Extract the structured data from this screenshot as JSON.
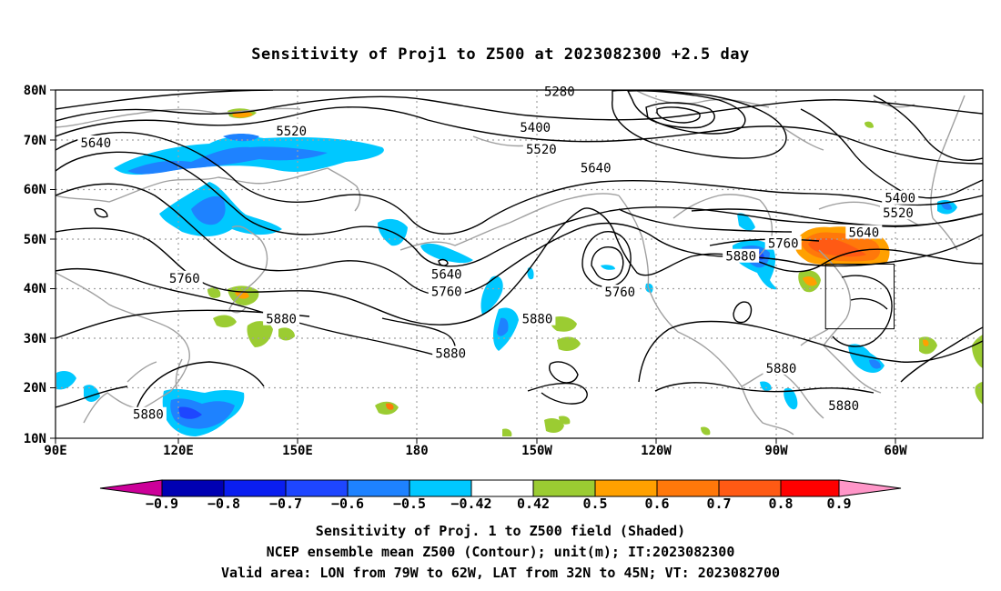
{
  "title": "Sensitivity of Proj1 to Z500 at 2023082300 +2.5 day",
  "map": {
    "lat_ticks": [
      "80N",
      "70N",
      "60N",
      "50N",
      "40N",
      "30N",
      "20N",
      "10N"
    ],
    "lon_ticks": [
      "90E",
      "120E",
      "150E",
      "180",
      "150W",
      "120W",
      "90W",
      "60W"
    ],
    "contour_labels": [
      {
        "text": "5280",
        "lon": -145,
        "lat": 79.7
      },
      {
        "text": "5400",
        "lon": -151,
        "lat": 72.5
      },
      {
        "text": "5520",
        "lon": 148.5,
        "lat": 71.8
      },
      {
        "text": "5640",
        "lon": 100,
        "lat": 69.4
      },
      {
        "text": "5520",
        "lon": -149.5,
        "lat": 68.1
      },
      {
        "text": "5640",
        "lon": -136,
        "lat": 64.4
      },
      {
        "text": "5400",
        "lon": -60.5,
        "lat": 58.3
      },
      {
        "text": "5520",
        "lon": -61,
        "lat": 55.3
      },
      {
        "text": "5640",
        "lon": -69.5,
        "lat": 51.4
      },
      {
        "text": "5760",
        "lon": -89.5,
        "lat": 49.2
      },
      {
        "text": "5880",
        "lon": -100,
        "lat": 46.6
      },
      {
        "text": "5640",
        "lon": -173,
        "lat": 43
      },
      {
        "text": "5760",
        "lon": -173,
        "lat": 39.5
      },
      {
        "text": "5760",
        "lon": 122,
        "lat": 42.2
      },
      {
        "text": "5760",
        "lon": -130,
        "lat": 39.4
      },
      {
        "text": "5880",
        "lon": 146,
        "lat": 34
      },
      {
        "text": "5880",
        "lon": -150.5,
        "lat": 34
      },
      {
        "text": "5880",
        "lon": -172,
        "lat": 27.1
      },
      {
        "text": "5880",
        "lon": -90,
        "lat": 24.1
      },
      {
        "text": "5880",
        "lon": -74.5,
        "lat": 16.6
      },
      {
        "text": "5880",
        "lon": 113,
        "lat": 14.8
      }
    ],
    "valid_box": {
      "lon_min": -79,
      "lon_max": -62,
      "lat_min": 32,
      "lat_max": 45
    },
    "colors": {
      "neg_09": "#cc0099",
      "neg_08": "#0000b3",
      "neg_07": "#0a1ef0",
      "neg_06": "#1e46ff",
      "neg_05": "#1e82ff",
      "neg_042": "#00c8ff",
      "neutral": "#ffffff",
      "pos_042": "#9bcc32",
      "pos_05": "#ffa000",
      "pos_06": "#ff780a",
      "pos_07": "#ff5a14",
      "pos_08": "#ff0000",
      "pos_09": "#ff96c8",
      "coast": "#a0a0a0",
      "grid": "#a0a0a0"
    }
  },
  "colorbar": {
    "labels": [
      "−0.9",
      "−0.8",
      "−0.7",
      "−0.6",
      "−0.5",
      "−0.42",
      "0.42",
      "0.5",
      "0.6",
      "0.7",
      "0.8",
      "0.9"
    ]
  },
  "captions": {
    "line1": "Sensitivity of Proj. 1 to Z500 field (Shaded)",
    "line2": "NCEP ensemble mean Z500 (Contour); unit(m); IT:2023082300",
    "line3": "Valid area: LON from 79W to 62W, LAT from 32N to 45N; VT: 2023082700"
  }
}
